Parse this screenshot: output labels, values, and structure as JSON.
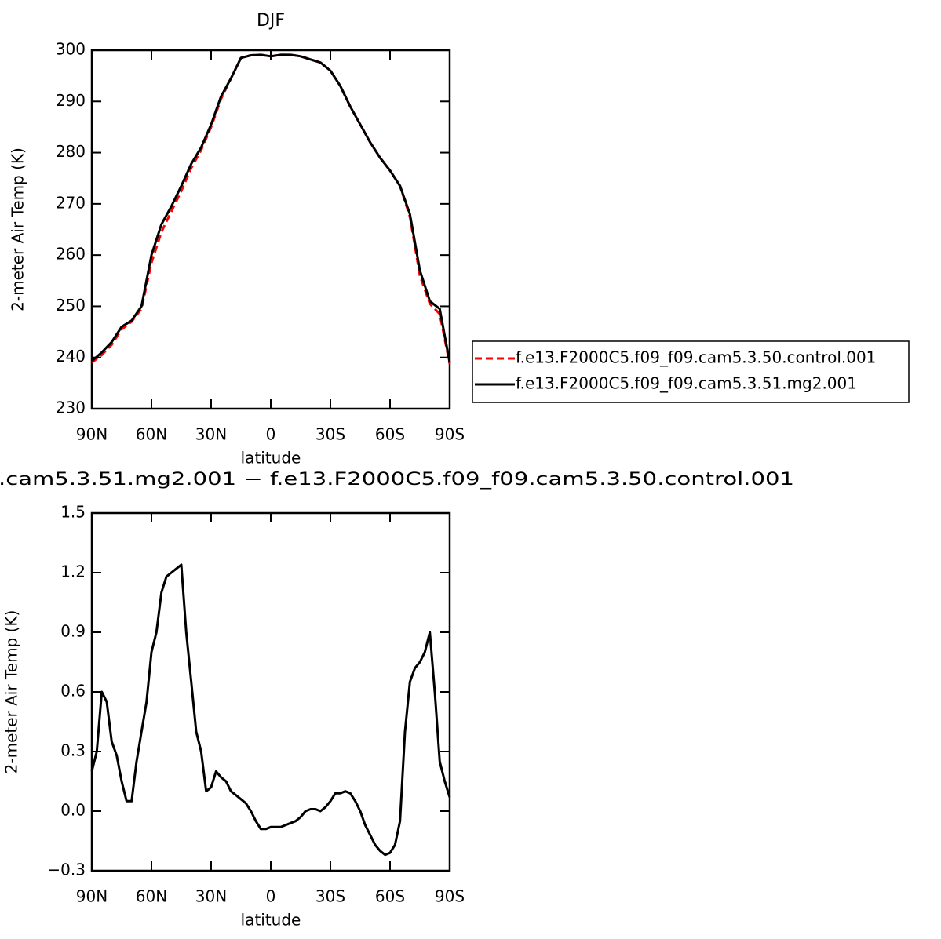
{
  "chart_data": [
    {
      "type": "line",
      "title": "DJF",
      "xlabel": "latitude",
      "ylabel": "2-meter Air Temp (K)",
      "x": [
        90,
        85,
        80,
        75,
        70,
        65,
        60,
        55,
        50,
        45,
        40,
        35,
        30,
        25,
        20,
        15,
        10,
        5,
        0,
        -5,
        -10,
        -15,
        -20,
        -25,
        -30,
        -35,
        -40,
        -45,
        -50,
        -55,
        -60,
        -65,
        -70,
        -75,
        -80,
        -85,
        -90
      ],
      "xlim": [
        90,
        -90
      ],
      "xticks": [
        {
          "value": 90,
          "label": "90N"
        },
        {
          "value": 60,
          "label": "60N"
        },
        {
          "value": 30,
          "label": "30N"
        },
        0,
        {
          "value": -30,
          "label": "30S"
        },
        {
          "value": -60,
          "label": "60S"
        },
        {
          "value": -90,
          "label": "90S"
        }
      ],
      "ylim": [
        230,
        300
      ],
      "yticks": [
        230,
        240,
        250,
        260,
        270,
        280,
        290,
        300
      ],
      "legend": "right",
      "series": [
        {
          "name": "f.e13.F2000C5.f09_f09.cam5.3.50.control.001",
          "color": "#ff0000",
          "linestyle": "dashed",
          "values": [
            239,
            240.5,
            242.5,
            245.5,
            247,
            249.5,
            258.5,
            264.5,
            268.5,
            272.5,
            277,
            280.5,
            285,
            290.5,
            294.5,
            298.5,
            299,
            299.1,
            298.8,
            299.1,
            299.1,
            298.8,
            298.2,
            297.6,
            296,
            293,
            289,
            285.5,
            282,
            279,
            276.5,
            273.5,
            267.5,
            256,
            250.5,
            248.5,
            238.7
          ]
        },
        {
          "name": "f.e13.F2000C5.f09_f09.cam5.3.51.mg2.001",
          "color": "#000000",
          "linestyle": "solid",
          "values": [
            239.3,
            241,
            243,
            246,
            247.2,
            250,
            260,
            266,
            269.5,
            273.5,
            277.8,
            281,
            285.5,
            291,
            294.5,
            298.5,
            299,
            299.1,
            298.8,
            299.1,
            299.1,
            298.8,
            298.2,
            297.6,
            296,
            293,
            289,
            285.5,
            282,
            279,
            276.5,
            273.5,
            268,
            257,
            251,
            249.5,
            239
          ]
        }
      ]
    },
    {
      "type": "line",
      "title": ".cam5.3.51.mg2.001 − f.e13.F2000C5.f09_f09.cam5.3.50.control.001",
      "xlabel": "latitude",
      "ylabel": "2-meter Air Temp (K)",
      "x": [
        90,
        87.5,
        85,
        82.5,
        80,
        77.5,
        75,
        72.5,
        70,
        67.5,
        65,
        62.5,
        60,
        57.5,
        55,
        52.5,
        50,
        47.5,
        45,
        42.5,
        40,
        37.5,
        35,
        32.5,
        30,
        27.5,
        25,
        22.5,
        20,
        17.5,
        15,
        12.5,
        10,
        7.5,
        5,
        2.5,
        0,
        -2.5,
        -5,
        -7.5,
        -10,
        -12.5,
        -15,
        -17.5,
        -20,
        -22.5,
        -25,
        -27.5,
        -30,
        -32.5,
        -35,
        -37.5,
        -40,
        -42.5,
        -45,
        -47.5,
        -50,
        -52.5,
        -55,
        -57.5,
        -60,
        -62.5,
        -65,
        -67.5,
        -70,
        -72.5,
        -75,
        -77.5,
        -80,
        -82.5,
        -85,
        -87.5,
        -90
      ],
      "xlim": [
        90,
        -90
      ],
      "xticks": [
        {
          "value": 90,
          "label": "90N"
        },
        {
          "value": 60,
          "label": "60N"
        },
        {
          "value": 30,
          "label": "30N"
        },
        0,
        {
          "value": -30,
          "label": "30S"
        },
        {
          "value": -60,
          "label": "60S"
        },
        {
          "value": -90,
          "label": "90S"
        }
      ],
      "ylim": [
        -0.3,
        1.5
      ],
      "yticks": [
        {
          "value": -0.3,
          "label": "−0.3"
        },
        {
          "value": 0,
          "label": "0.0"
        },
        0.3,
        0.6,
        0.9,
        1.2,
        1.5
      ],
      "series": [
        {
          "color": "#000000",
          "linestyle": "solid",
          "values": [
            0.2,
            0.3,
            0.6,
            0.55,
            0.35,
            0.28,
            0.15,
            0.05,
            0.05,
            0.25,
            0.4,
            0.55,
            0.8,
            0.9,
            1.1,
            1.18,
            1.2,
            1.22,
            1.24,
            0.9,
            0.65,
            0.4,
            0.3,
            0.1,
            0.12,
            0.2,
            0.17,
            0.15,
            0.1,
            0.08,
            0.06,
            0.04,
            0.0,
            -0.05,
            -0.09,
            -0.09,
            -0.08,
            -0.08,
            -0.08,
            -0.07,
            -0.06,
            -0.05,
            -0.03,
            0.0,
            0.01,
            0.01,
            0.0,
            0.02,
            0.05,
            0.09,
            0.09,
            0.1,
            0.09,
            0.05,
            0.0,
            -0.07,
            -0.12,
            -0.17,
            -0.2,
            -0.22,
            -0.21,
            -0.17,
            -0.05,
            0.4,
            0.65,
            0.72,
            0.75,
            0.8,
            0.9,
            0.6,
            0.25,
            0.15,
            0.07
          ]
        }
      ]
    }
  ]
}
